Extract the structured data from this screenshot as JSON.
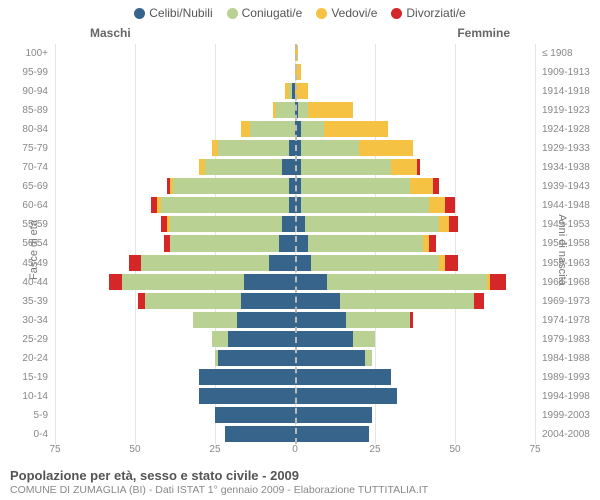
{
  "legend": [
    {
      "label": "Celibi/Nubili",
      "color": "#36648b"
    },
    {
      "label": "Coniugati/e",
      "color": "#b9d193"
    },
    {
      "label": "Vedovi/e",
      "color": "#f6c244"
    },
    {
      "label": "Divorziati/e",
      "color": "#d62728"
    }
  ],
  "gender": {
    "male": "Maschi",
    "female": "Femmine"
  },
  "axis_titles": {
    "left": "Fasce di età",
    "right": "Anni di nascita"
  },
  "title": "Popolazione per età, sesso e stato civile - 2009",
  "subtitle": "COMUNE DI ZUMAGLIA (BI) - Dati ISTAT 1° gennaio 2009 - Elaborazione TUTTITALIA.IT",
  "xmax": 75,
  "xticks": [
    75,
    50,
    25,
    0,
    25,
    50,
    75
  ],
  "colors": {
    "celibi": "#36648b",
    "coniugati": "#b9d193",
    "vedovi": "#f6c244",
    "divorziati": "#d62728",
    "grid": "#e5e5e5",
    "background": "#ffffff"
  },
  "rows": [
    {
      "age": "100+",
      "birth": "≤ 1908",
      "m": [
        0,
        0,
        0,
        0
      ],
      "f": [
        0,
        0,
        1,
        0
      ]
    },
    {
      "age": "95-99",
      "birth": "1909-1913",
      "m": [
        0,
        0,
        0,
        0
      ],
      "f": [
        0,
        0,
        2,
        0
      ]
    },
    {
      "age": "90-94",
      "birth": "1914-1918",
      "m": [
        1,
        1,
        1,
        0
      ],
      "f": [
        0,
        0,
        4,
        0
      ]
    },
    {
      "age": "85-89",
      "birth": "1919-1923",
      "m": [
        0,
        6,
        1,
        0
      ],
      "f": [
        1,
        3,
        14,
        0
      ]
    },
    {
      "age": "80-84",
      "birth": "1924-1928",
      "m": [
        0,
        14,
        3,
        0
      ],
      "f": [
        2,
        7,
        20,
        0
      ]
    },
    {
      "age": "75-79",
      "birth": "1929-1933",
      "m": [
        2,
        22,
        2,
        0
      ],
      "f": [
        2,
        18,
        17,
        0
      ]
    },
    {
      "age": "70-74",
      "birth": "1934-1938",
      "m": [
        4,
        24,
        2,
        0
      ],
      "f": [
        2,
        28,
        8,
        1
      ]
    },
    {
      "age": "65-69",
      "birth": "1939-1943",
      "m": [
        2,
        36,
        1,
        1
      ],
      "f": [
        2,
        34,
        7,
        2
      ]
    },
    {
      "age": "60-64",
      "birth": "1944-1948",
      "m": [
        2,
        40,
        1,
        2
      ],
      "f": [
        2,
        40,
        5,
        3
      ]
    },
    {
      "age": "55-59",
      "birth": "1949-1953",
      "m": [
        4,
        35,
        1,
        2
      ],
      "f": [
        3,
        42,
        3,
        3
      ]
    },
    {
      "age": "50-54",
      "birth": "1954-1958",
      "m": [
        5,
        34,
        0,
        2
      ],
      "f": [
        4,
        36,
        2,
        2
      ]
    },
    {
      "age": "45-49",
      "birth": "1959-1963",
      "m": [
        8,
        40,
        0,
        4
      ],
      "f": [
        5,
        40,
        2,
        4
      ]
    },
    {
      "age": "40-44",
      "birth": "1964-1968",
      "m": [
        16,
        38,
        0,
        4
      ],
      "f": [
        10,
        50,
        1,
        5
      ]
    },
    {
      "age": "35-39",
      "birth": "1969-1973",
      "m": [
        17,
        30,
        0,
        2
      ],
      "f": [
        14,
        42,
        0,
        3
      ]
    },
    {
      "age": "30-34",
      "birth": "1974-1978",
      "m": [
        18,
        14,
        0,
        0
      ],
      "f": [
        16,
        20,
        0,
        1
      ]
    },
    {
      "age": "25-29",
      "birth": "1979-1983",
      "m": [
        21,
        5,
        0,
        0
      ],
      "f": [
        18,
        7,
        0,
        0
      ]
    },
    {
      "age": "20-24",
      "birth": "1984-1988",
      "m": [
        24,
        1,
        0,
        0
      ],
      "f": [
        22,
        2,
        0,
        0
      ]
    },
    {
      "age": "15-19",
      "birth": "1989-1993",
      "m": [
        30,
        0,
        0,
        0
      ],
      "f": [
        30,
        0,
        0,
        0
      ]
    },
    {
      "age": "10-14",
      "birth": "1994-1998",
      "m": [
        30,
        0,
        0,
        0
      ],
      "f": [
        32,
        0,
        0,
        0
      ]
    },
    {
      "age": "5-9",
      "birth": "1999-2003",
      "m": [
        25,
        0,
        0,
        0
      ],
      "f": [
        24,
        0,
        0,
        0
      ]
    },
    {
      "age": "0-4",
      "birth": "2004-2008",
      "m": [
        22,
        0,
        0,
        0
      ],
      "f": [
        23,
        0,
        0,
        0
      ]
    }
  ]
}
